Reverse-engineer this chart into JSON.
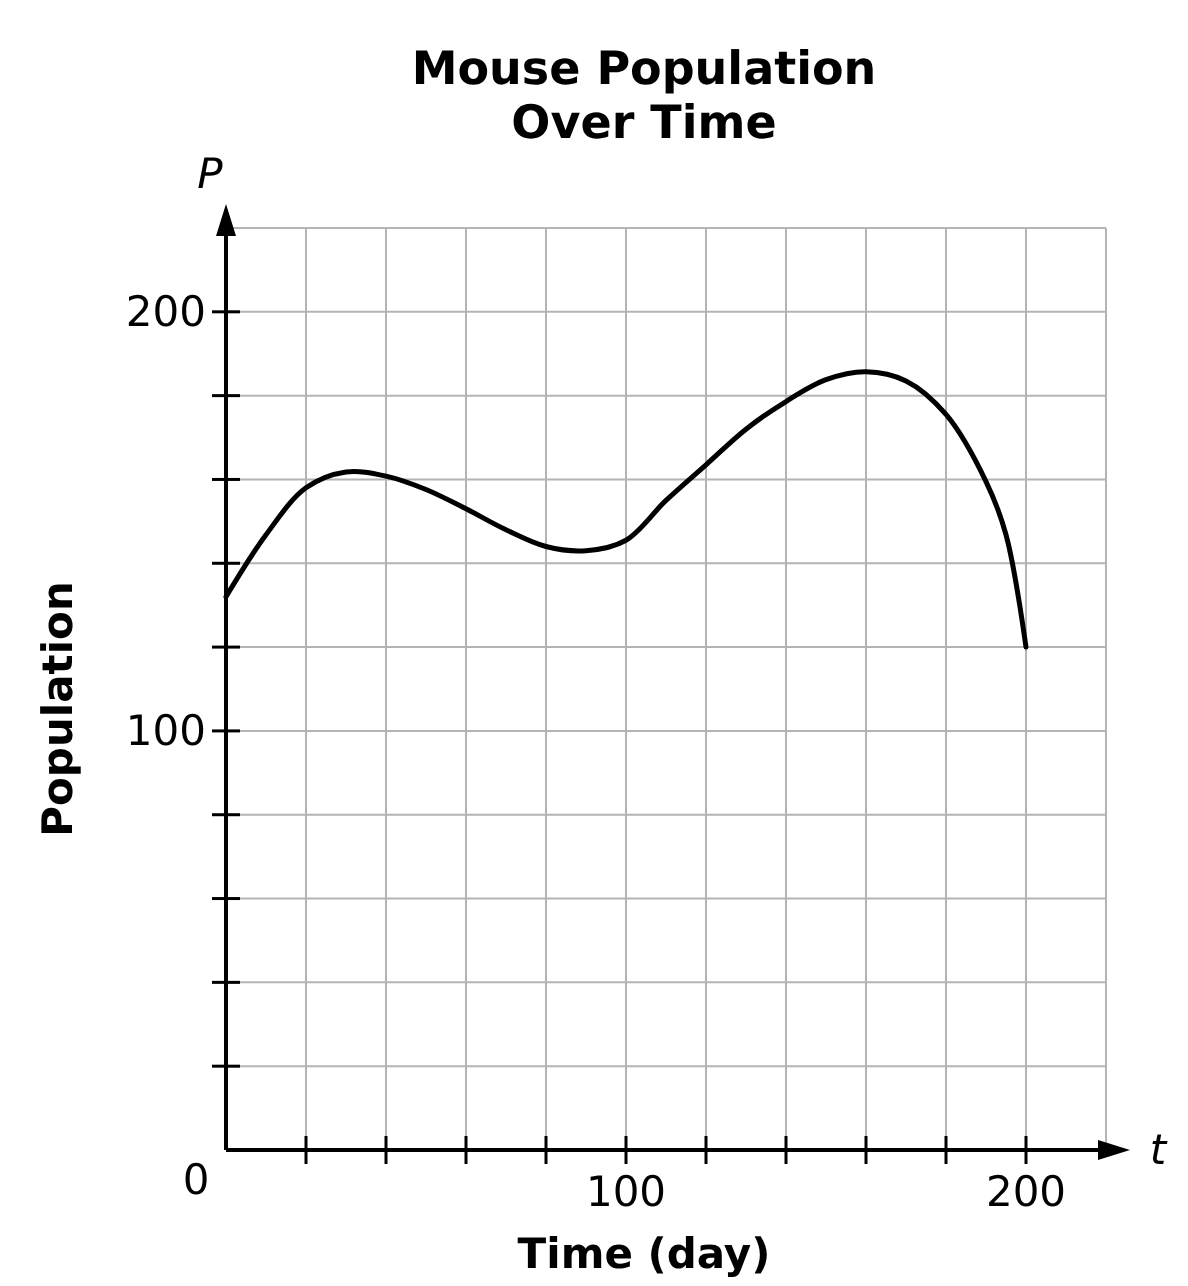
{
  "chart_data": {
    "type": "line",
    "title": "Mouse Population\nOver Time",
    "xlabel": "Time (day)",
    "ylabel": "Population",
    "annotations": [
      "P",
      "t"
    ],
    "x": [
      0,
      10,
      20,
      30,
      40,
      50,
      60,
      70,
      80,
      90,
      100,
      110,
      120,
      130,
      140,
      150,
      160,
      170,
      180,
      190,
      195,
      200
    ],
    "series": [
      {
        "color": "#000000",
        "values": [
          132,
          146.8,
          158,
          161.8,
          160.8,
          157.6,
          153,
          148,
          144,
          143,
          145.5,
          155,
          163.5,
          172,
          178.6,
          183.8,
          185.7,
          183.5,
          175.5,
          159.5,
          146.8,
          120
        ]
      }
    ],
    "xlim": [
      0,
      220
    ],
    "ylim": [
      0,
      220
    ],
    "xticks": [
      {
        "value": 0,
        "label": null
      },
      {
        "value": 20,
        "label": null
      },
      {
        "value": 40,
        "label": null
      },
      {
        "value": 60,
        "label": null
      },
      {
        "value": 80,
        "label": null
      },
      100,
      {
        "value": 120,
        "label": null
      },
      {
        "value": 140,
        "label": null
      },
      {
        "value": 160,
        "label": null
      },
      {
        "value": 180,
        "label": null
      },
      200
    ],
    "yticks": [
      0,
      {
        "value": 20,
        "label": null
      },
      {
        "value": 40,
        "label": null
      },
      {
        "value": 60,
        "label": null
      },
      {
        "value": 80,
        "label": null
      },
      100,
      {
        "value": 120,
        "label": null
      },
      {
        "value": 140,
        "label": null
      },
      {
        "value": 160,
        "label": null
      },
      {
        "value": 180,
        "label": null
      },
      200
    ],
    "grid": true,
    "marker": "none",
    "line_style": "solid"
  }
}
